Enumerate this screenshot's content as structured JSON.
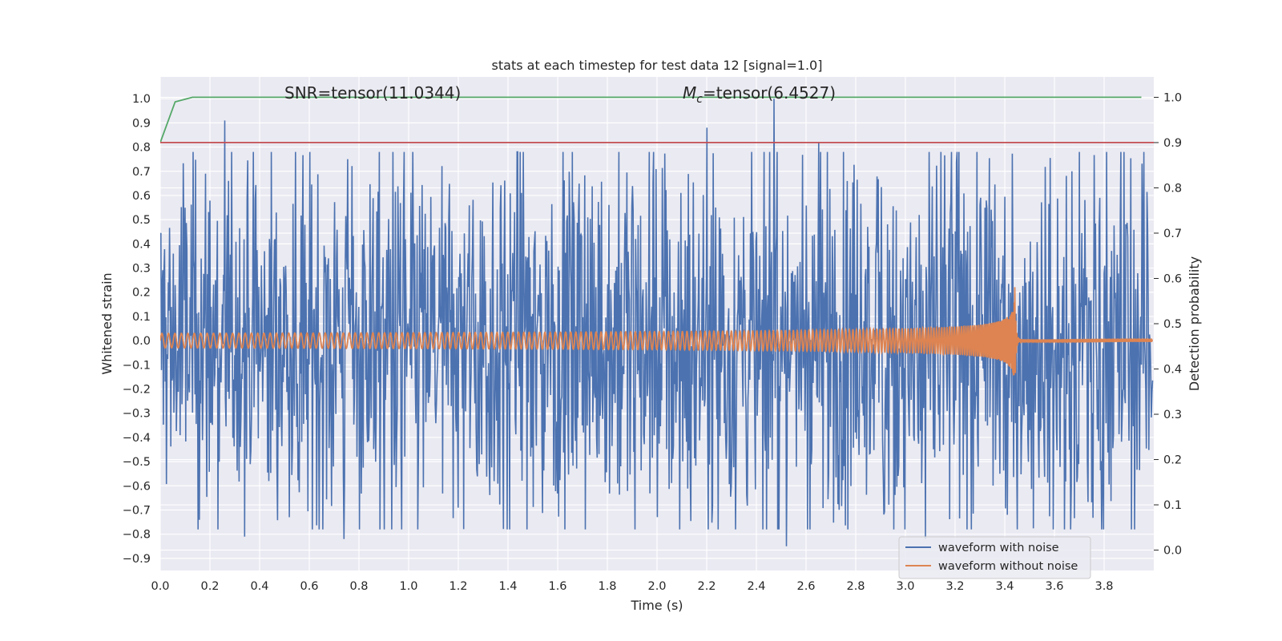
{
  "chart_data": {
    "type": "line",
    "title": "stats at each timestep for test data 12 [signal=1.0]",
    "xlabel": "Time (s)",
    "ylabel": "Whitened strain",
    "y2label": "Detection probability",
    "xlim": [
      0.0,
      4.0
    ],
    "ylim": [
      -0.95,
      1.09
    ],
    "y2lim": [
      -0.045,
      1.045
    ],
    "x_ticks": [
      "0.0",
      "0.2",
      "0.4",
      "0.6",
      "0.8",
      "1.0",
      "1.2",
      "1.4",
      "1.6",
      "1.8",
      "2.0",
      "2.2",
      "2.4",
      "2.6",
      "2.8",
      "3.0",
      "3.2",
      "3.4",
      "3.6",
      "3.8"
    ],
    "y_ticks": [
      "1.0",
      "0.9",
      "0.8",
      "0.7",
      "0.6",
      "0.5",
      "0.4",
      "0.3",
      "0.2",
      "0.1",
      "0.0",
      "−0.1",
      "−0.2",
      "−0.3",
      "−0.4",
      "−0.5",
      "−0.6",
      "−0.7",
      "−0.8",
      "−0.9"
    ],
    "y2_ticks": [
      "1.0",
      "0.9",
      "0.8",
      "0.7",
      "0.6",
      "0.5",
      "0.4",
      "0.3",
      "0.2",
      "0.1",
      "0.0"
    ],
    "grid": true,
    "legend_position": "lower right",
    "annotations": {
      "snr": "SNR=tensor(11.0344)",
      "mc_symbol": "M",
      "mc_subscript": "c",
      "mc_value": "=tensor(6.4527)"
    },
    "series": [
      {
        "name": "waveform with noise",
        "axis": "left",
        "color": "#4c72b0",
        "description_peaks": [
          [
            0.26,
            0.91
          ],
          [
            2.2,
            0.88
          ],
          [
            2.47,
            1.0
          ],
          [
            2.65,
            0.82
          ],
          [
            0.34,
            -0.81
          ],
          [
            0.74,
            -0.82
          ],
          [
            2.52,
            -0.85
          ],
          [
            3.08,
            -0.82
          ]
        ],
        "amplitude_envelope": 0.45
      },
      {
        "name": "waveform without noise",
        "axis": "left",
        "color": "#dd8452",
        "chirp": {
          "t_merger": 3.44,
          "f_start": 38,
          "amp_start": 0.03,
          "amp_peak": 0.27,
          "amp_post": 0.003
        }
      },
      {
        "axis": "right",
        "color": "#55a868",
        "x": [
          0.0,
          0.06,
          0.13,
          0.2,
          1.0,
          2.0,
          3.0,
          3.95
        ],
        "y": [
          0.9,
          0.99,
          1.0,
          1.0,
          1.0,
          1.0,
          1.0,
          1.0
        ]
      },
      {
        "axis": "right",
        "color": "#c44e52",
        "x": [
          0.0,
          4.0
        ],
        "y": [
          0.9,
          0.9
        ]
      }
    ],
    "colors": {
      "background": "#eaeaf2",
      "grid": "#ffffff",
      "noise": "#4c72b0",
      "signal": "#dd8452",
      "probability": "#55a868",
      "threshold": "#c44e52"
    }
  }
}
